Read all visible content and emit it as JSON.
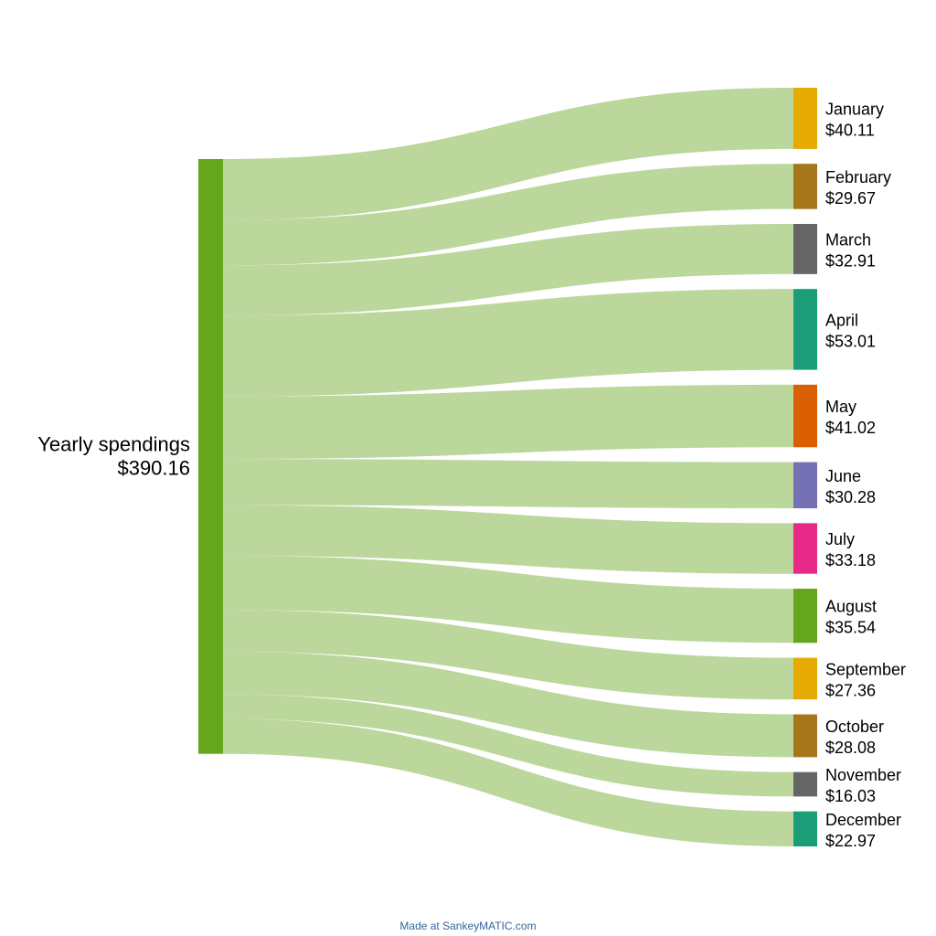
{
  "sankey": {
    "source": {
      "name": "Yearly spendings",
      "value_label": "$390.16",
      "value": 390.16,
      "color": "#66a61e"
    },
    "flow_color": "#bbd79c",
    "targets": [
      {
        "name": "January",
        "value_label": "$40.11",
        "value": 40.11,
        "color": "#e6ab02"
      },
      {
        "name": "February",
        "value_label": "$29.67",
        "value": 29.67,
        "color": "#a6761d"
      },
      {
        "name": "March",
        "value_label": "$32.91",
        "value": 32.91,
        "color": "#666666"
      },
      {
        "name": "April",
        "value_label": "$53.01",
        "value": 53.01,
        "color": "#1b9e77"
      },
      {
        "name": "May",
        "value_label": "$41.02",
        "value": 41.02,
        "color": "#d95f02"
      },
      {
        "name": "June",
        "value_label": "$30.28",
        "value": 30.28,
        "color": "#7570b3"
      },
      {
        "name": "July",
        "value_label": "$33.18",
        "value": 33.18,
        "color": "#e7298a"
      },
      {
        "name": "August",
        "value_label": "$35.54",
        "value": 35.54,
        "color": "#66a61e"
      },
      {
        "name": "September",
        "value_label": "$27.36",
        "value": 27.36,
        "color": "#e6ab02"
      },
      {
        "name": "October",
        "value_label": "$28.08",
        "value": 28.08,
        "color": "#a6761d"
      },
      {
        "name": "November",
        "value_label": "$16.03",
        "value": 16.03,
        "color": "#666666"
      },
      {
        "name": "December",
        "value_label": "$22.97",
        "value": 22.97,
        "color": "#1b9e77"
      }
    ]
  },
  "footer": {
    "credit": "Made at SankeyMATIC.com"
  }
}
